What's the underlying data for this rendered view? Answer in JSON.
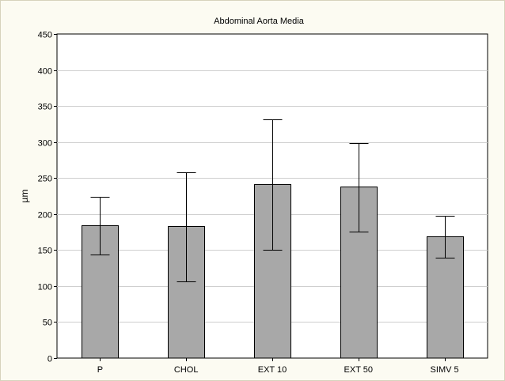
{
  "chart_data": {
    "type": "bar",
    "title": "Abdominal Aorta Media",
    "xlabel": "",
    "ylabel": "µm",
    "categories": [
      "P",
      "CHOL",
      "EXT 10",
      "EXT 50",
      "SIMV 5"
    ],
    "values": [
      184,
      183,
      241,
      238,
      169
    ],
    "error_low": [
      144,
      107,
      150,
      176,
      139
    ],
    "error_high": [
      224,
      258,
      332,
      299,
      198
    ],
    "ylim": [
      0,
      450
    ],
    "yticks": [
      0,
      50,
      100,
      150,
      200,
      250,
      300,
      350,
      400,
      450
    ],
    "grid": true,
    "legend": "none",
    "colors": {
      "bar_fill": "#a8a8a8",
      "bar_stroke": "#000000",
      "grid": "#cfcfcf",
      "background": "#fcfbf2",
      "plot_background": "#ffffff"
    }
  }
}
